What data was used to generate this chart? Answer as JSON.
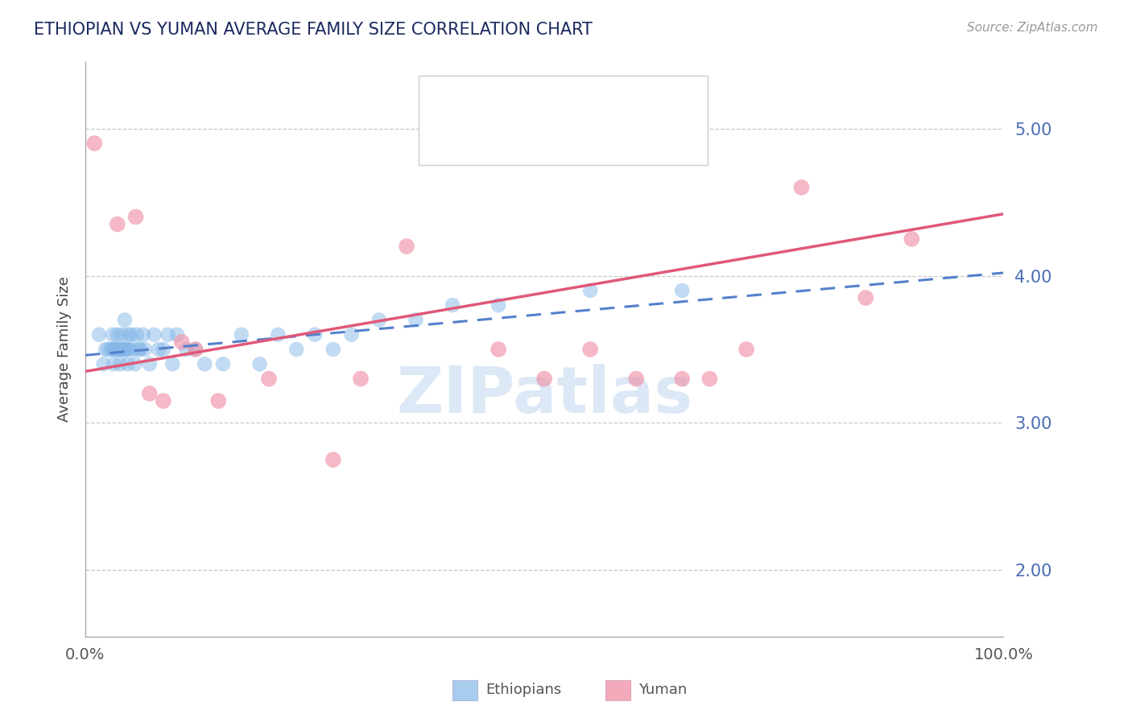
{
  "title": "ETHIOPIAN VS YUMAN AVERAGE FAMILY SIZE CORRELATION CHART",
  "source_text": "Source: ZipAtlas.com",
  "ylabel": "Average Family Size",
  "yticks": [
    2.0,
    3.0,
    4.0,
    5.0
  ],
  "xlim": [
    0.0,
    100.0
  ],
  "ylim": [
    1.55,
    5.45
  ],
  "ethiopian_color": "#85b8e8",
  "yuman_color": "#f093a8",
  "title_color": "#1a2a5e",
  "ylabel_color": "#444444",
  "tick_color": "#4a6bb5",
  "grid_color": "#c8c8c8",
  "watermark_color": "#dce8f5",
  "eth_legend_color": "#a8ccee",
  "yum_legend_color": "#f4aabb",
  "legend_border_color": "#cccccc",
  "source_color": "#999999",
  "ethiopian_x": [
    1.5,
    2.0,
    2.2,
    2.5,
    2.8,
    3.0,
    3.0,
    3.1,
    3.2,
    3.3,
    3.4,
    3.5,
    3.6,
    3.7,
    3.8,
    3.9,
    4.0,
    4.1,
    4.2,
    4.3,
    4.4,
    4.5,
    4.6,
    4.7,
    4.8,
    5.0,
    5.2,
    5.4,
    5.6,
    5.8,
    6.0,
    6.3,
    6.5,
    7.0,
    7.5,
    8.0,
    8.5,
    9.0,
    9.5,
    10.0,
    11.0,
    12.0,
    13.0,
    15.0,
    17.0,
    19.0,
    21.0,
    23.0,
    25.0,
    27.0,
    29.0,
    32.0,
    36.0,
    40.0,
    45.0,
    55.0,
    65.0
  ],
  "ethiopian_y": [
    3.6,
    3.4,
    3.5,
    3.5,
    3.5,
    3.5,
    3.6,
    3.4,
    3.5,
    3.5,
    3.5,
    3.6,
    3.5,
    3.5,
    3.4,
    3.5,
    3.6,
    3.5,
    3.5,
    3.7,
    3.5,
    3.5,
    3.4,
    3.6,
    3.5,
    3.6,
    3.5,
    3.4,
    3.6,
    3.5,
    3.5,
    3.6,
    3.5,
    3.4,
    3.6,
    3.5,
    3.5,
    3.6,
    3.4,
    3.6,
    3.5,
    3.5,
    3.4,
    3.4,
    3.6,
    3.4,
    3.6,
    3.5,
    3.6,
    3.5,
    3.6,
    3.7,
    3.7,
    3.8,
    3.8,
    3.9,
    3.9
  ],
  "yuman_x": [
    1.0,
    3.5,
    5.5,
    7.0,
    8.5,
    10.5,
    12.0,
    14.5,
    20.0,
    27.0,
    30.0,
    35.0,
    45.0,
    50.0,
    55.0,
    60.0,
    65.0,
    68.0,
    72.0,
    78.0,
    85.0,
    90.0
  ],
  "yuman_y": [
    4.9,
    4.35,
    4.4,
    3.2,
    3.15,
    3.55,
    3.5,
    3.15,
    3.3,
    2.75,
    3.3,
    4.2,
    3.5,
    3.3,
    3.5,
    3.3,
    3.3,
    3.3,
    3.5,
    4.6,
    3.85,
    4.25
  ],
  "eth_trendline_x0": 0,
  "eth_trendline_x1": 100,
  "eth_trendline_y0": 3.46,
  "eth_trendline_y1": 4.02,
  "yum_trendline_x0": 0,
  "yum_trendline_x1": 100,
  "yum_trendline_y0": 3.35,
  "yum_trendline_y1": 4.42
}
